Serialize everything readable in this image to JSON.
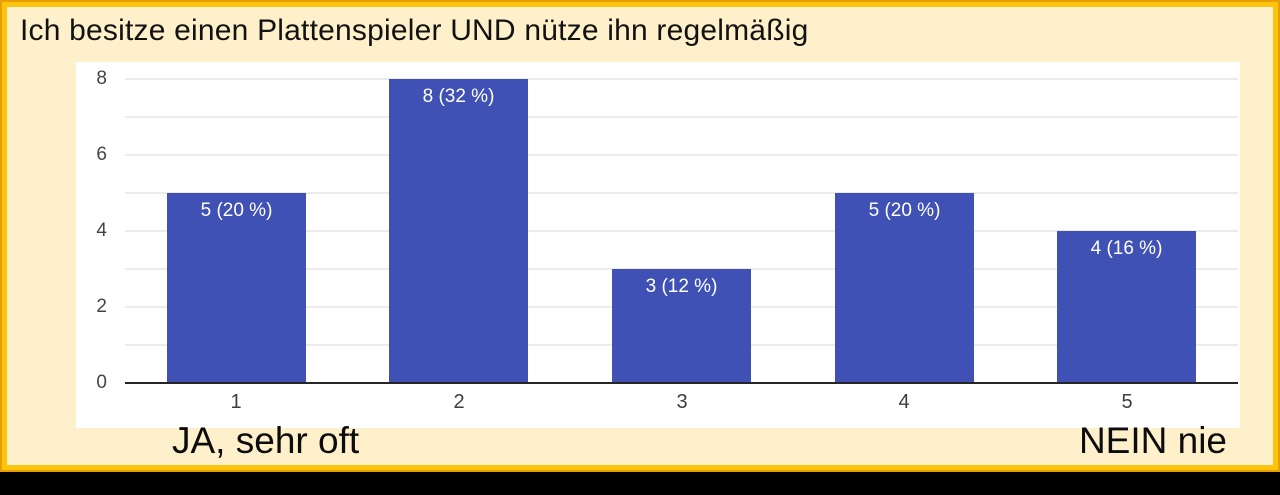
{
  "title": "Ich besitze einen Plattenspieler UND nütze ihn regelmäßig",
  "chart_data": {
    "type": "bar",
    "title": "Ich besitze einen Plattenspieler UND nütze ihn regelmäßig",
    "categories": [
      "1",
      "2",
      "3",
      "4",
      "5"
    ],
    "values": [
      5,
      8,
      3,
      5,
      4
    ],
    "percentages": [
      20,
      32,
      12,
      20,
      16
    ],
    "bar_labels": [
      "5 (20 %)",
      "8 (32 %)",
      "3 (12 %)",
      "5 (20 %)",
      "4 (16 %)"
    ],
    "xlabel": "",
    "ylabel": "",
    "ylim": [
      0,
      8
    ],
    "ytick_values": [
      0,
      2,
      4,
      6,
      8
    ],
    "gridline_step": 1,
    "grid": "horizontal",
    "legend": "none",
    "bar_color": "#3f51b5",
    "bar_label_color": "#ffffff",
    "axis_note_left": "JA, sehr oft",
    "axis_note_right": "NEIN nie"
  },
  "colors": {
    "slide_background": "#fdf0cb",
    "slide_border": "#fdc40e",
    "slide_border_edge": "#e59e06",
    "bottom_bar": "#000000",
    "chart_card": "#ffffff",
    "gridline": "#ebebeb",
    "axis_line": "#262626",
    "tick_text": "#454545",
    "title_text": "#121212"
  }
}
